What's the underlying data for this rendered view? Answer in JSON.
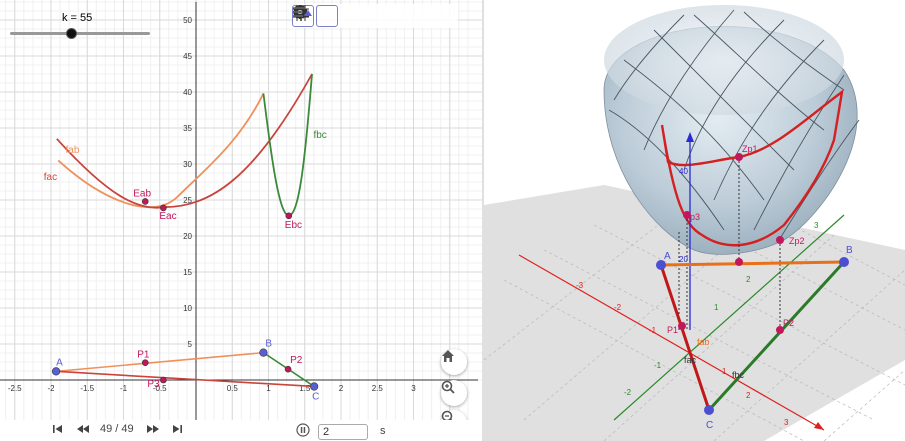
{
  "slider": {
    "label": "k = 55",
    "value": 55
  },
  "toolbar": {
    "icons": [
      "axes-toggle-icon",
      "grid-toggle-icon",
      "home-icon",
      "snap-icon",
      "settings-icon",
      "more-icon",
      "style-bar-icon"
    ]
  },
  "graph2d": {
    "x_ticks": [
      "-2.5",
      "-2",
      "-1.5",
      "-1",
      "-0.5",
      "0.5",
      "1",
      "1.5",
      "2",
      "2.5",
      "3"
    ],
    "y_ticks": [
      "5",
      "10",
      "15",
      "20",
      "25",
      "30",
      "35",
      "40",
      "45",
      "50"
    ],
    "curve_labels": {
      "fab": "fab",
      "fac": "fac",
      "fbc": "fbc"
    },
    "point_labels": {
      "Eab": "Eab",
      "Eac": "Eac",
      "Ebc": "Ebc",
      "A": "A",
      "B": "B",
      "C": "C",
      "P1": "P1",
      "P2": "P2",
      "P3": "P3"
    },
    "colors": {
      "fab": "#f0905a",
      "fac": "#c8443c",
      "fbc": "#3a8a3a",
      "point_pink": "#c2185b",
      "point_blue": "#5b5fd6"
    }
  },
  "playbar": {
    "first_icon": "skip-first-icon",
    "back_icon": "step-back-icon",
    "step_text": "49 / 49",
    "forward_icon": "step-forward-icon",
    "last_icon": "skip-last-icon",
    "pause_icon": "pause-icon",
    "speed_value": "2",
    "speed_unit": "s"
  },
  "view_buttons": [
    "home-icon",
    "zoom-in-icon",
    "zoom-out-icon"
  ],
  "graph3d": {
    "labels": {
      "B": "B",
      "C": "C",
      "A": "A",
      "Zp1": "Zp1",
      "Zp2": "Zp2",
      "Zp3": "p3",
      "P1": "P1",
      "P2": "P2",
      "fab": "fab",
      "fac": "fac",
      "fbc": "fbc",
      "z40": "40",
      "z20": "20"
    },
    "axis_ticks_x": [
      "-3",
      "-2",
      "-1",
      "1",
      "2",
      "3"
    ],
    "axis_ticks_y": [
      "-2",
      "-1",
      "1",
      "2",
      "3"
    ]
  }
}
